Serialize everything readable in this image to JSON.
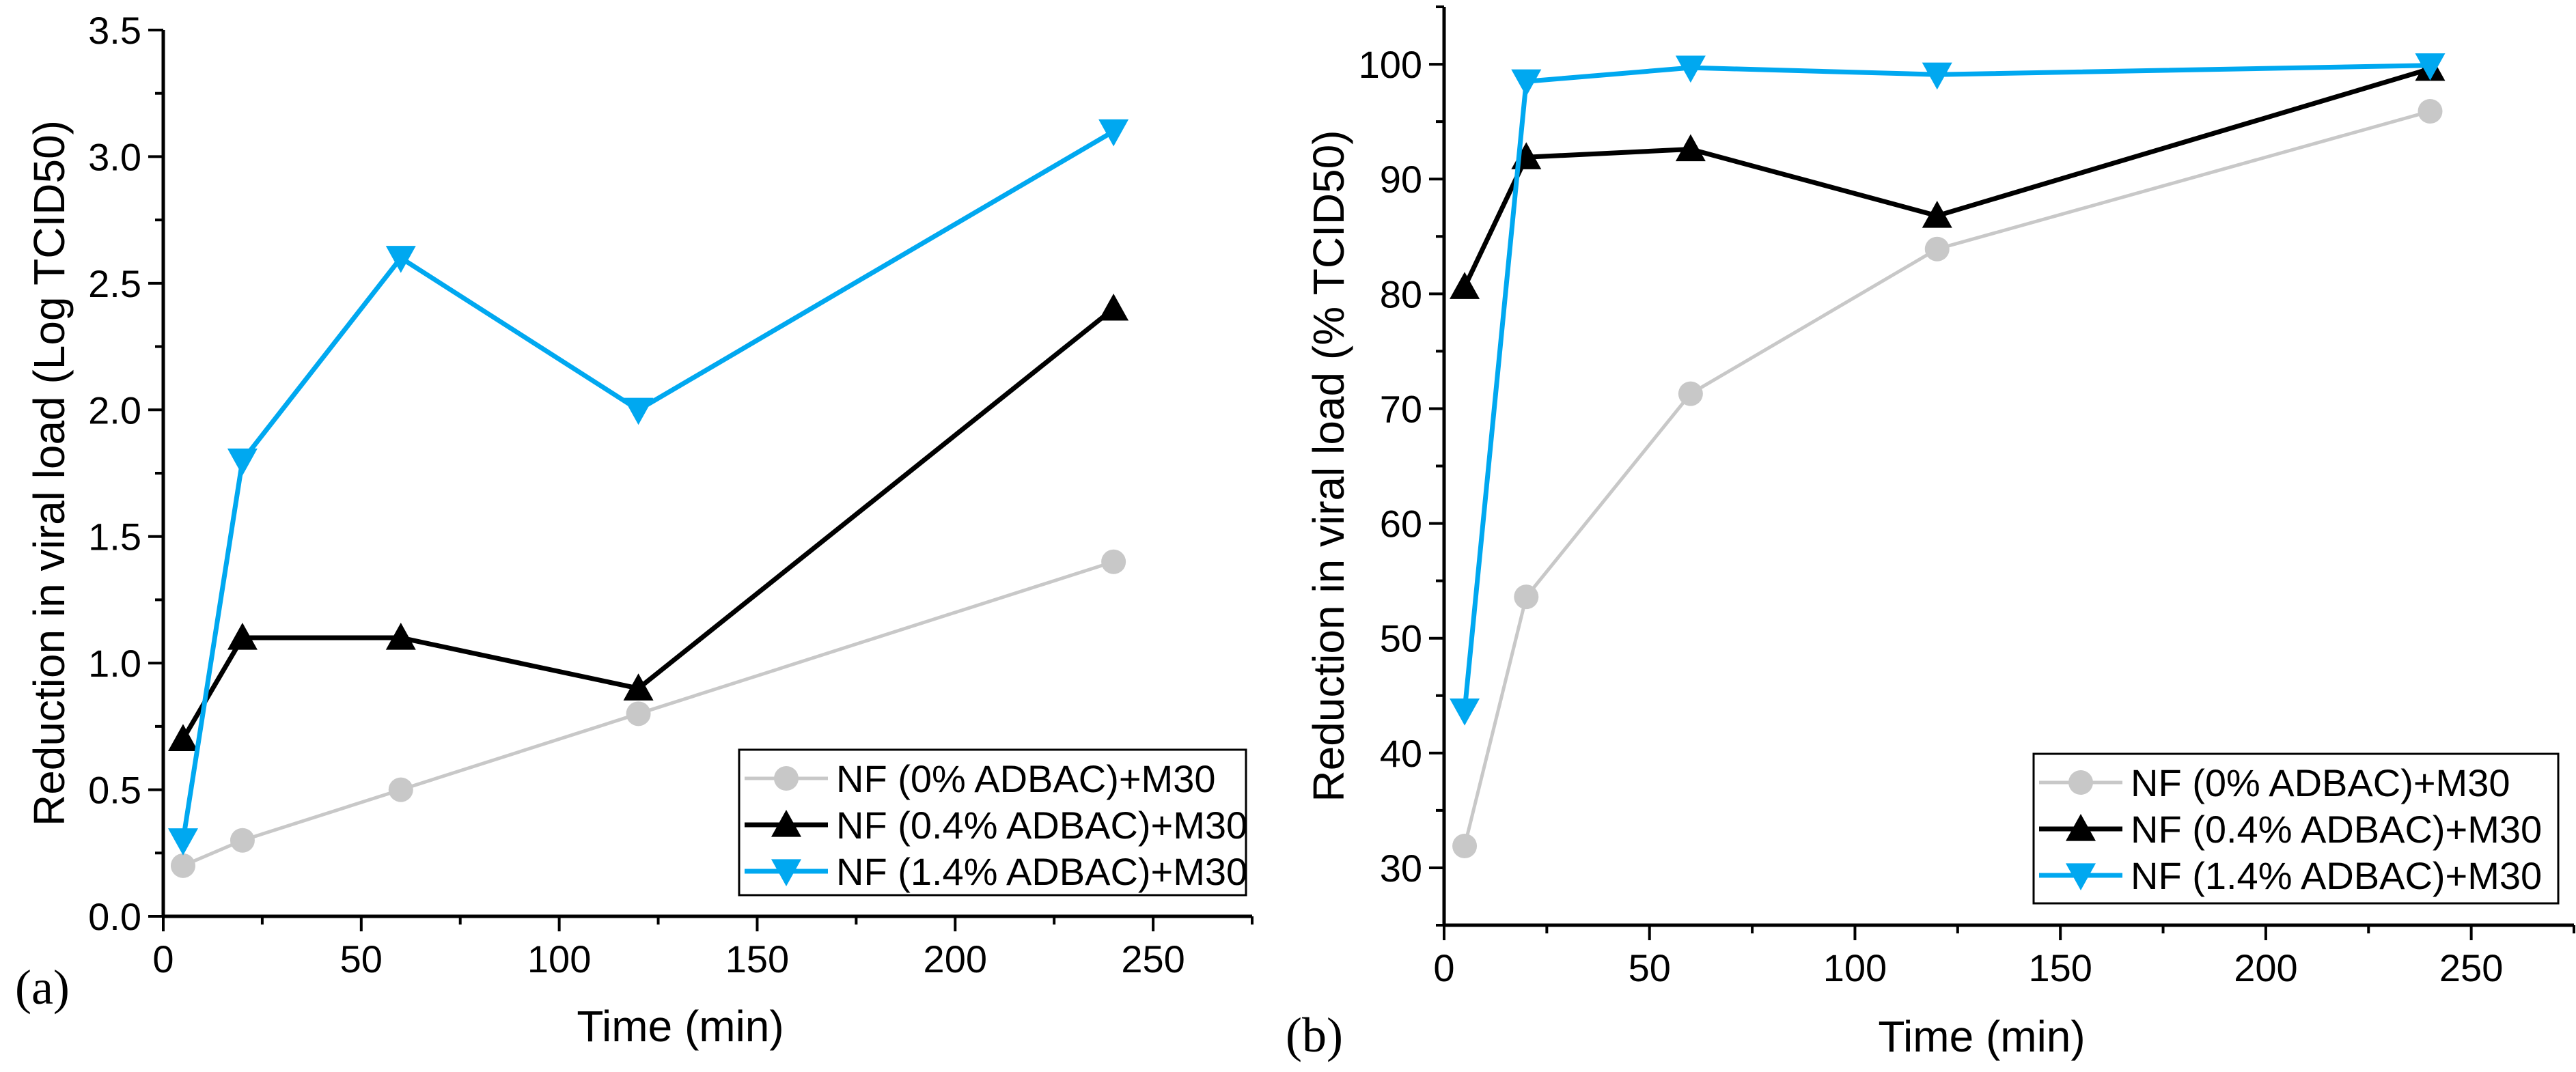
{
  "chart_data": [
    {
      "type": "line",
      "panel_label": "(a)",
      "xlabel": "Time (min)",
      "ylabel": "Reduction in viral load (Log TCID50)",
      "xlim": [
        0,
        275
      ],
      "ylim": [
        0,
        3.5
      ],
      "xticks": [
        0,
        50,
        100,
        150,
        200,
        250
      ],
      "yticks": [
        0.0,
        0.5,
        1.0,
        1.5,
        2.0,
        2.5,
        3.0,
        3.5
      ],
      "ytick_labels": [
        "0.0",
        "0.5",
        "1.0",
        "1.5",
        "2.0",
        "2.5",
        "3.0",
        "3.5"
      ],
      "x": [
        5,
        20,
        60,
        120,
        240
      ],
      "legend_position": "bottom-right",
      "series": [
        {
          "name": "NF (0% ADBAC)+M30",
          "color": "#c8c8c8",
          "marker": "circle",
          "values": [
            0.2,
            0.3,
            0.5,
            0.8,
            1.4
          ]
        },
        {
          "name": "NF (0.4% ADBAC)+M30",
          "color": "#000000",
          "marker": "triangle-up",
          "values": [
            0.7,
            1.1,
            1.1,
            0.9,
            2.4
          ]
        },
        {
          "name": "NF (1.4% ADBAC)+M30",
          "color": "#00a8f0",
          "marker": "triangle-down",
          "values": [
            0.3,
            1.8,
            2.6,
            2.0,
            3.1
          ]
        }
      ]
    },
    {
      "type": "line",
      "panel_label": "(b)",
      "xlabel": "Time (min)",
      "ylabel": "Reduction in viral load (% TCID50)",
      "xlim": [
        0,
        275
      ],
      "ylim": [
        25,
        105
      ],
      "xticks": [
        0,
        50,
        100,
        150,
        200,
        250
      ],
      "yticks": [
        30,
        40,
        50,
        60,
        70,
        80,
        90,
        100
      ],
      "ytick_labels": [
        "30",
        "40",
        "50",
        "60",
        "70",
        "80",
        "90",
        "100"
      ],
      "x": [
        5,
        20,
        60,
        120,
        240
      ],
      "legend_position": "bottom-right",
      "series": [
        {
          "name": "NF (0% ADBAC)+M30",
          "color": "#c8c8c8",
          "marker": "circle",
          "values": [
            31.9,
            53.6,
            71.3,
            83.9,
            95.9
          ]
        },
        {
          "name": "NF (0.4% ADBAC)+M30",
          "color": "#000000",
          "marker": "triangle-up",
          "values": [
            80.6,
            91.9,
            92.6,
            86.8,
            99.6
          ]
        },
        {
          "name": "NF (1.4% ADBAC)+M30",
          "color": "#00a8f0",
          "marker": "triangle-down",
          "values": [
            43.7,
            98.5,
            99.7,
            99.1,
            99.9
          ]
        }
      ]
    }
  ]
}
